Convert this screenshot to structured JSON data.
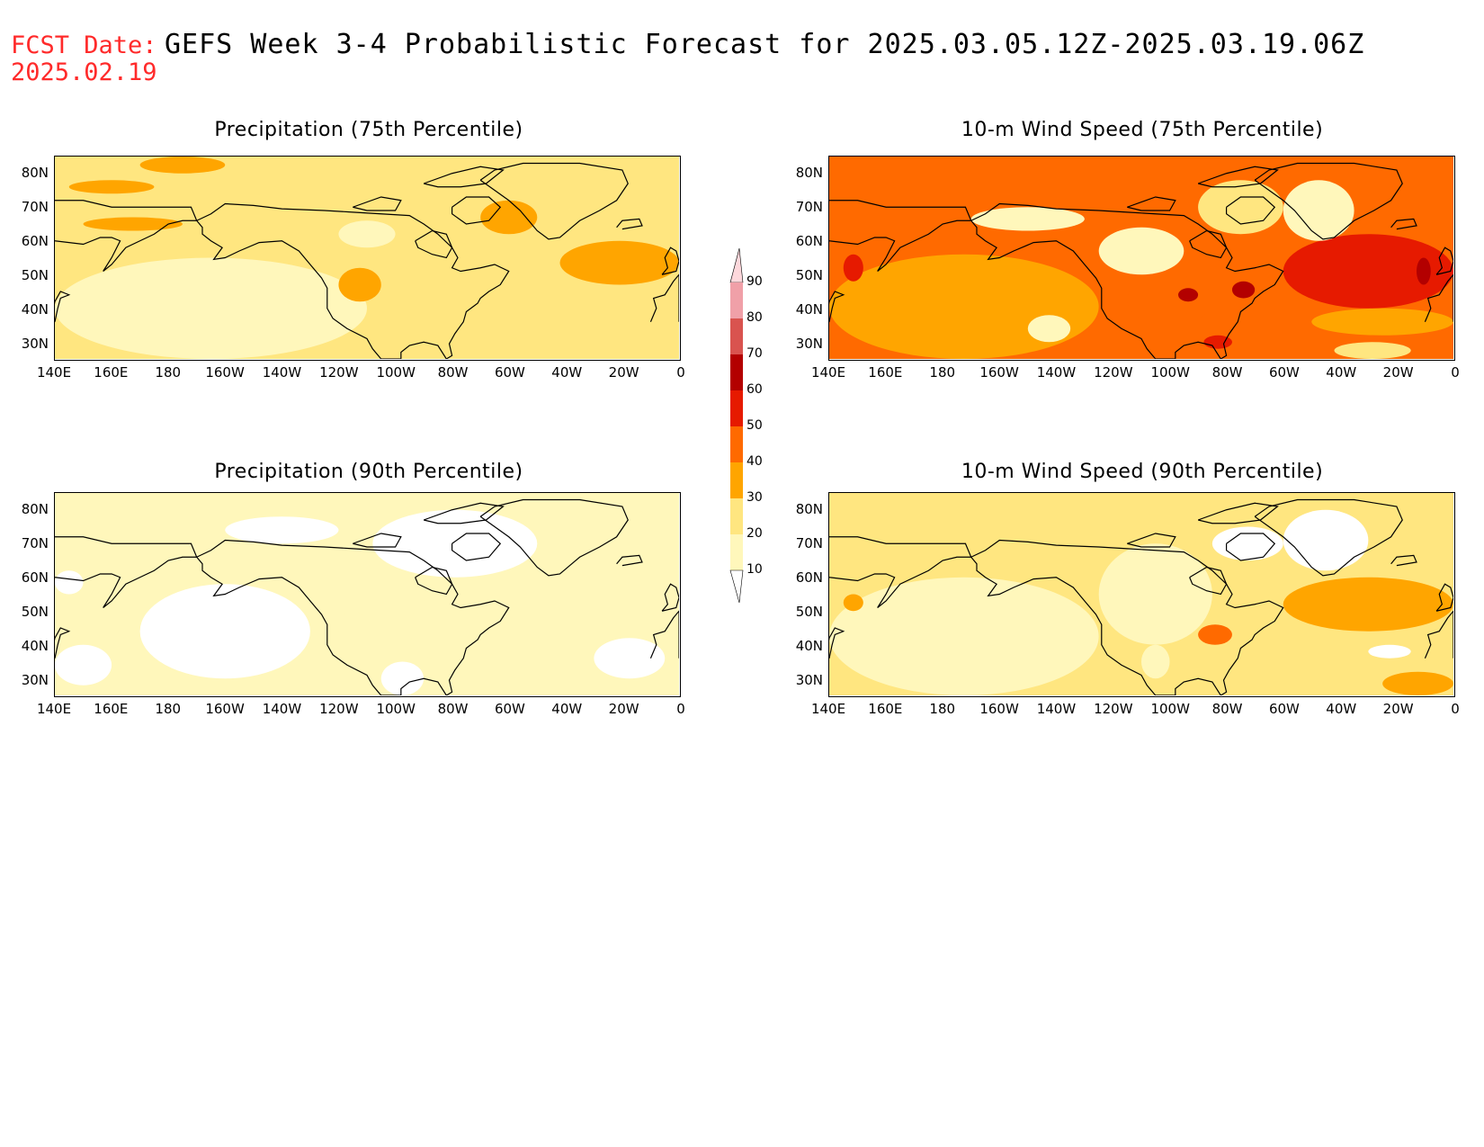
{
  "header": {
    "fcst_label": "FCST Date:",
    "fcst_date": "2025.02.19",
    "title": "GEFS Week 3-4 Probabilistic Forecast for 2025.03.05.12Z-2025.03.19.06Z"
  },
  "panels": [
    {
      "title": "Precipitation (75th Percentile)",
      "field": "precip75"
    },
    {
      "title": "10-m Wind Speed (75th Percentile)",
      "field": "wind75"
    },
    {
      "title": "Precipitation (90th Percentile)",
      "field": "precip90"
    },
    {
      "title": "10-m Wind Speed (90th Percentile)",
      "field": "wind90"
    }
  ],
  "lat_ticks": [
    "80N",
    "70N",
    "60N",
    "50N",
    "40N",
    "30N"
  ],
  "lon_ticks": [
    "140E",
    "160E",
    "180",
    "160W",
    "140W",
    "120W",
    "100W",
    "80W",
    "60W",
    "40W",
    "20W",
    "0"
  ],
  "map_extent": {
    "lon_min": 140,
    "lon_max": 360,
    "lat_min": 25,
    "lat_max": 85
  },
  "colorbar": {
    "levels": [
      "10",
      "20",
      "30",
      "40",
      "50",
      "60",
      "70",
      "80",
      "90"
    ],
    "colors": [
      "#fff7bb",
      "#ffe680",
      "#ffa500",
      "#ff6a00",
      "#e61a00",
      "#b30000",
      "#d9534f",
      "#f0a0a8",
      "#fdd8dc"
    ]
  }
}
